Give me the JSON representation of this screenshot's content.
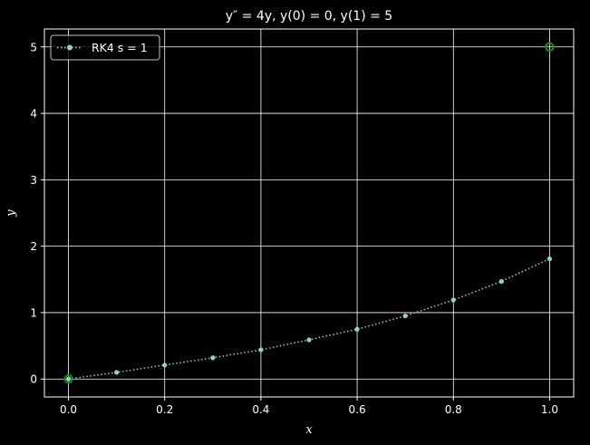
{
  "chart_data": {
    "type": "line",
    "title": "y″ = 4y, y(0) = 0, y(1) = 5",
    "xlabel": "x",
    "ylabel": "y",
    "xlim": [
      -0.05,
      1.05
    ],
    "ylim": [
      -0.27,
      5.27
    ],
    "xticks": [
      0.0,
      0.2,
      0.4,
      0.6,
      0.8,
      1.0
    ],
    "xtick_labels": [
      "0.0",
      "0.2",
      "0.4",
      "0.6",
      "0.8",
      "1.0"
    ],
    "yticks": [
      0,
      1,
      2,
      3,
      4,
      5
    ],
    "ytick_labels": [
      "0",
      "1",
      "2",
      "3",
      "4",
      "5"
    ],
    "grid": true,
    "legend_position": "top-left",
    "series": [
      {
        "name": "RK4 s = 1",
        "color": "#8dd3c7",
        "line_style": "dotted",
        "marker": "circle",
        "x": [
          0.0,
          0.1,
          0.2,
          0.3,
          0.4,
          0.5,
          0.6,
          0.7,
          0.8,
          0.9,
          1.0
        ],
        "y": [
          0.0,
          0.1,
          0.21,
          0.32,
          0.44,
          0.59,
          0.75,
          0.95,
          1.19,
          1.47,
          1.81
        ]
      }
    ],
    "boundary_points": {
      "color": "#1a8a1a",
      "x": [
        0.0,
        1.0
      ],
      "y": [
        0.0,
        5.0
      ]
    }
  }
}
